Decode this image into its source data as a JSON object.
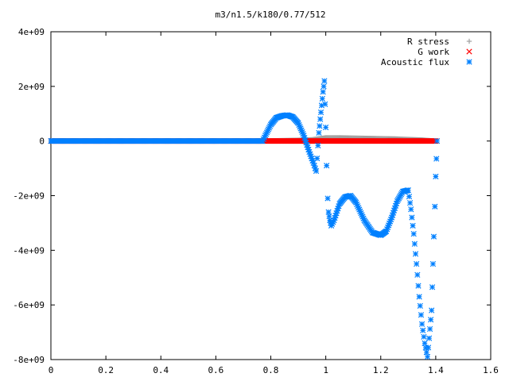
{
  "chart_data": {
    "type": "scatter",
    "title": "m3/n1.5/k180/0.77/512",
    "xlabel": "",
    "ylabel": "",
    "xlim": [
      0,
      1.6
    ],
    "ylim": [
      -8000000000.0,
      4000000000.0
    ],
    "x_ticks": [
      0,
      0.2,
      0.4,
      0.6,
      0.8,
      1,
      1.2,
      1.4,
      1.6
    ],
    "x_tick_labels": [
      "0",
      "0.2",
      "0.4",
      "0.6",
      "0.8",
      "1",
      "1.2",
      "1.4",
      "1.6"
    ],
    "y_ticks": [
      4000000000.0,
      2000000000.0,
      0,
      -2000000000.0,
      -4000000000.0,
      -6000000000.0,
      -8000000000.0
    ],
    "y_tick_labels": [
      "4e+09",
      "2e+09",
      "0",
      "-2e+09",
      "-4e+09",
      "-6e+09",
      "-8e+09"
    ],
    "grid": false,
    "legend_position": "top-right",
    "series": [
      {
        "name": "R stress",
        "marker": "+",
        "color": "#a0a0a0",
        "points": [
          [
            0,
            0
          ],
          [
            0.77,
            0
          ],
          [
            0.8,
            10000000.0
          ],
          [
            0.85,
            20000000.0
          ],
          [
            0.9,
            30000000.0
          ],
          [
            0.95,
            50000000.0
          ],
          [
            1.0,
            120000000.0
          ],
          [
            1.05,
            120000000.0
          ],
          [
            1.1,
            110000000.0
          ],
          [
            1.15,
            100000000.0
          ],
          [
            1.2,
            90000000.0
          ],
          [
            1.25,
            80000000.0
          ],
          [
            1.3,
            60000000.0
          ],
          [
            1.35,
            40000000.0
          ],
          [
            1.4,
            0
          ]
        ]
      },
      {
        "name": "G work",
        "marker": "x",
        "color": "#ff0000",
        "points": [
          [
            0,
            0
          ],
          [
            0.77,
            0
          ],
          [
            0.8,
            0
          ],
          [
            0.85,
            0
          ],
          [
            0.9,
            0
          ],
          [
            0.95,
            0
          ],
          [
            1.0,
            0
          ],
          [
            1.05,
            0
          ],
          [
            1.1,
            0
          ],
          [
            1.15,
            0
          ],
          [
            1.2,
            0
          ],
          [
            1.25,
            0
          ],
          [
            1.3,
            0
          ],
          [
            1.35,
            0
          ],
          [
            1.4,
            0
          ]
        ]
      },
      {
        "name": "Acoustic flux",
        "marker": "*",
        "color": "#0080ff",
        "points": [
          [
            0,
            0
          ],
          [
            0.77,
            0
          ],
          [
            0.78,
            200000000.0
          ],
          [
            0.8,
            600000000.0
          ],
          [
            0.82,
            850000000.0
          ],
          [
            0.84,
            920000000.0
          ],
          [
            0.86,
            950000000.0
          ],
          [
            0.88,
            880000000.0
          ],
          [
            0.9,
            650000000.0
          ],
          [
            0.92,
            200000000.0
          ],
          [
            0.94,
            -400000000.0
          ],
          [
            0.955,
            -800000000.0
          ],
          [
            0.965,
            -1100000000.0
          ],
          [
            0.975,
            300000000.0
          ],
          [
            0.98,
            800000000.0
          ],
          [
            0.985,
            1300000000.0
          ],
          [
            0.99,
            1800000000.0
          ],
          [
            0.995,
            2200000000.0
          ],
          [
            1.0,
            500000000.0
          ],
          [
            1.003,
            -900000000.0
          ],
          [
            1.007,
            -2100000000.0
          ],
          [
            1.01,
            -2600000000.0
          ],
          [
            1.015,
            -2900000000.0
          ],
          [
            1.02,
            -3100000000.0
          ],
          [
            1.03,
            -2900000000.0
          ],
          [
            1.05,
            -2300000000.0
          ],
          [
            1.07,
            -2050000000.0
          ],
          [
            1.09,
            -2000000000.0
          ],
          [
            1.11,
            -2250000000.0
          ],
          [
            1.14,
            -2900000000.0
          ],
          [
            1.17,
            -3350000000.0
          ],
          [
            1.2,
            -3450000000.0
          ],
          [
            1.22,
            -3300000000.0
          ],
          [
            1.24,
            -2800000000.0
          ],
          [
            1.26,
            -2200000000.0
          ],
          [
            1.28,
            -1850000000.0
          ],
          [
            1.3,
            -1800000000.0
          ],
          [
            1.31,
            -2500000000.0
          ],
          [
            1.32,
            -3400000000.0
          ],
          [
            1.33,
            -4500000000.0
          ],
          [
            1.34,
            -5700000000.0
          ],
          [
            1.35,
            -6700000000.0
          ],
          [
            1.36,
            -7400000000.0
          ],
          [
            1.37,
            -7900000000.0
          ],
          [
            1.385,
            -6200000000.0
          ],
          [
            1.39,
            -4500000000.0
          ],
          [
            1.393,
            -3500000000.0
          ],
          [
            1.397,
            -2400000000.0
          ],
          [
            1.4,
            -1300000000.0
          ],
          [
            1.405,
            0
          ]
        ]
      }
    ]
  }
}
